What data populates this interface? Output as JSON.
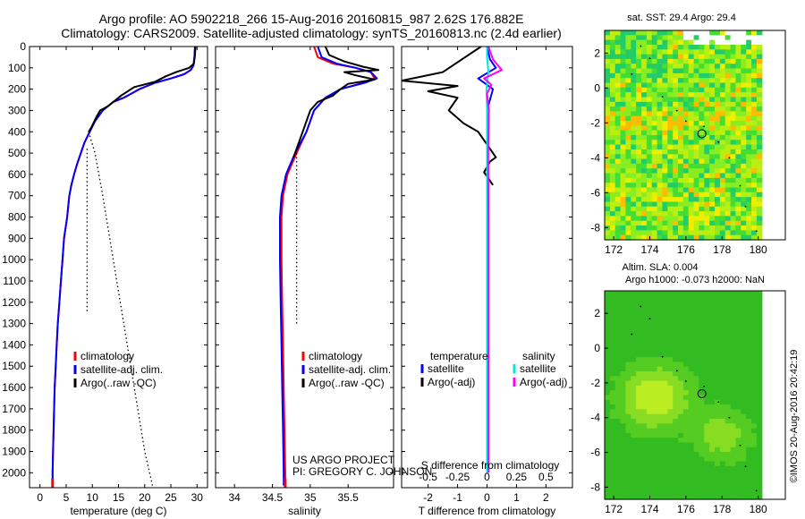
{
  "header": {
    "title_line1": "Argo profile: AO 5902218_266 15-Aug-2016 20160815_987 2.62S 176.882E",
    "title_line2": "Climatology: CARS2009. Satellite-adjusted climatology: synTS_20160813.nc (2.4d earlier)"
  },
  "credit": "©IMOS 20-Aug-2016 20:42:19",
  "project": {
    "line1": "US ARGO PROJECT",
    "line2": "PI: GREGORY C. JOHNSON"
  },
  "colors": {
    "climatology": "#ff0000",
    "satellite": "#0000ff",
    "argo": "#000000",
    "sat_salinity": "#00e5e5",
    "argo_salinity": "#ff00ff"
  },
  "chart_data": [
    {
      "id": "temperature",
      "type": "line",
      "xlabel": "temperature (deg C)",
      "ylabel": "",
      "xlim": [
        -2,
        32
      ],
      "ylim": [
        2070,
        0
      ],
      "xticks": [
        0,
        5,
        10,
        15,
        20,
        25,
        30
      ],
      "yticks": [
        0,
        100,
        200,
        300,
        400,
        500,
        600,
        700,
        800,
        900,
        1000,
        1100,
        1200,
        1300,
        1400,
        1500,
        1600,
        1700,
        1800,
        1900,
        2000
      ],
      "legend": [
        "climatology",
        "satellite-adj. clim.",
        "Argo(..raw -QC)"
      ],
      "series": [
        {
          "name": "climatology",
          "color": "#ff0000",
          "points": [
            [
              29.6,
              0
            ],
            [
              29.5,
              50
            ],
            [
              29.3,
              90
            ],
            [
              28.8,
              110
            ],
            [
              27.5,
              130
            ],
            [
              25,
              150
            ],
            [
              22,
              170
            ],
            [
              19,
              200
            ],
            [
              16,
              240
            ],
            [
              14,
              260
            ],
            [
              12,
              300
            ],
            [
              10.5,
              350
            ],
            [
              9.5,
              400
            ],
            [
              8.5,
              450
            ],
            [
              7.8,
              500
            ],
            [
              7.1,
              550
            ],
            [
              6.5,
              600
            ],
            [
              6,
              650
            ],
            [
              5.6,
              700
            ],
            [
              5.2,
              800
            ],
            [
              4.6,
              900
            ],
            [
              4.3,
              1000
            ],
            [
              4,
              1100
            ],
            [
              3.7,
              1200
            ],
            [
              3.4,
              1300
            ],
            [
              3.2,
              1400
            ],
            [
              3,
              1500
            ],
            [
              2.8,
              1600
            ],
            [
              2.7,
              1700
            ],
            [
              2.6,
              1800
            ],
            [
              2.5,
              1900
            ],
            [
              2.4,
              2000
            ],
            [
              2.4,
              2060
            ]
          ]
        },
        {
          "name": "satellite-adj. clim.",
          "color": "#0000ff",
          "points": [
            [
              29.6,
              0
            ],
            [
              29.5,
              50
            ],
            [
              29.3,
              90
            ],
            [
              28.8,
              110
            ],
            [
              27.5,
              130
            ],
            [
              25,
              150
            ],
            [
              22,
              170
            ],
            [
              19,
              200
            ],
            [
              16,
              240
            ],
            [
              14,
              260
            ],
            [
              12,
              300
            ],
            [
              10.5,
              350
            ],
            [
              9.5,
              400
            ],
            [
              8.5,
              450
            ],
            [
              7.8,
              500
            ],
            [
              7.1,
              550
            ],
            [
              6.5,
              600
            ],
            [
              6,
              650
            ],
            [
              5.6,
              700
            ],
            [
              5.2,
              800
            ],
            [
              4.6,
              900
            ],
            [
              4.3,
              1000
            ],
            [
              4,
              1100
            ],
            [
              3.7,
              1200
            ],
            [
              3.4,
              1300
            ],
            [
              3.2,
              1400
            ],
            [
              3,
              1500
            ],
            [
              2.8,
              1600
            ],
            [
              2.7,
              1700
            ],
            [
              2.6,
              1800
            ],
            [
              2.5,
              1900
            ],
            [
              2.4,
              2000
            ],
            [
              2.4,
              2060
            ]
          ]
        },
        {
          "name": "Argo(..raw -QC)",
          "color": "#000000",
          "points": [
            [
              29.7,
              0
            ],
            [
              29.6,
              40
            ],
            [
              29.4,
              80
            ],
            [
              28.5,
              100
            ],
            [
              26,
              120
            ],
            [
              24,
              140
            ],
            [
              22,
              165
            ],
            [
              18,
              190
            ],
            [
              15.5,
              230
            ],
            [
              13,
              280
            ],
            [
              11.5,
              300
            ],
            [
              10.8,
              330
            ],
            [
              9.8,
              380
            ],
            [
              9.3,
              400
            ]
          ]
        },
        {
          "name": "Argo raw dotted",
          "color": "#000000",
          "dotted": true,
          "points": [
            [
              9.3,
              400
            ],
            [
              10.5,
              500
            ],
            [
              12,
              700
            ],
            [
              14,
              1000
            ],
            [
              16,
              1300
            ],
            [
              18,
              1600
            ],
            [
              20,
              1900
            ],
            [
              21.5,
              2060
            ]
          ]
        },
        {
          "name": "Argo raw dotted 2",
          "color": "#000000",
          "dotted": true,
          "points": [
            [
              9,
              480
            ],
            [
              9,
              600
            ],
            [
              9,
              800
            ],
            [
              9,
              1000
            ],
            [
              9,
              1250
            ]
          ]
        }
      ]
    },
    {
      "id": "salinity",
      "type": "line",
      "xlabel": "salinity",
      "ylabel": "",
      "xlim": [
        33.75,
        36.1
      ],
      "ylim": [
        2070,
        0
      ],
      "xticks": [
        34,
        34.5,
        35,
        35.5
      ],
      "legend": [
        "climatology",
        "satellite-adj. clim.",
        "Argo(..raw -QC)"
      ],
      "series": [
        {
          "name": "climatology",
          "color": "#ff0000",
          "points": [
            [
              35.05,
              0
            ],
            [
              35.1,
              50
            ],
            [
              35.3,
              80
            ],
            [
              35.6,
              100
            ],
            [
              35.8,
              120
            ],
            [
              35.85,
              150
            ],
            [
              35.7,
              170
            ],
            [
              35.4,
              200
            ],
            [
              35.2,
              240
            ],
            [
              35.05,
              300
            ],
            [
              34.95,
              400
            ],
            [
              34.82,
              500
            ],
            [
              34.7,
              600
            ],
            [
              34.64,
              700
            ],
            [
              34.62,
              800
            ],
            [
              34.62,
              1000
            ],
            [
              34.63,
              1200
            ],
            [
              34.64,
              1400
            ],
            [
              34.65,
              1600
            ],
            [
              34.66,
              1800
            ],
            [
              34.67,
              2000
            ],
            [
              34.67,
              2060
            ]
          ]
        },
        {
          "name": "satellite-adj. clim.",
          "color": "#0000ff",
          "points": [
            [
              35.1,
              0
            ],
            [
              35.15,
              50
            ],
            [
              35.35,
              80
            ],
            [
              35.6,
              100
            ],
            [
              35.8,
              120
            ],
            [
              35.88,
              150
            ],
            [
              35.72,
              170
            ],
            [
              35.4,
              200
            ],
            [
              35.2,
              240
            ],
            [
              35.05,
              300
            ],
            [
              34.95,
              400
            ],
            [
              34.8,
              500
            ],
            [
              34.68,
              600
            ],
            [
              34.62,
              700
            ],
            [
              34.6,
              800
            ],
            [
              34.6,
              1000
            ],
            [
              34.61,
              1200
            ],
            [
              34.62,
              1400
            ],
            [
              34.63,
              1600
            ],
            [
              34.64,
              1800
            ],
            [
              34.65,
              2000
            ],
            [
              34.65,
              2060
            ]
          ]
        },
        {
          "name": "Argo(..raw -QC)",
          "color": "#000000",
          "points": [
            [
              35.2,
              0
            ],
            [
              35.25,
              40
            ],
            [
              35.45,
              70
            ],
            [
              35.7,
              95
            ],
            [
              35.9,
              110
            ],
            [
              35.45,
              120
            ],
            [
              35.6,
              135
            ],
            [
              35.85,
              155
            ],
            [
              35.5,
              175
            ],
            [
              35.4,
              200
            ],
            [
              35.3,
              230
            ],
            [
              35.1,
              260
            ],
            [
              35.0,
              300
            ],
            [
              34.9,
              400
            ],
            [
              34.82,
              480
            ],
            [
              34.78,
              520
            ]
          ]
        },
        {
          "name": "Argo raw dotted",
          "color": "#000000",
          "dotted": true,
          "points": [
            [
              34.82,
              500
            ],
            [
              34.82,
              700
            ],
            [
              34.82,
              1000
            ],
            [
              34.82,
              1300
            ]
          ]
        }
      ]
    },
    {
      "id": "difference",
      "type": "line",
      "xlabel": "T difference from climatology",
      "xlabel_top": "S difference from climatology",
      "xlim": [
        -2.9,
        2.9
      ],
      "ylim": [
        2070,
        0
      ],
      "xticks_T": [
        -2,
        -1,
        0,
        1,
        2
      ],
      "xticks_S": [
        -0.5,
        -0.25,
        0,
        0.25,
        0.5
      ],
      "legend_headers": [
        "temperature",
        "salinity"
      ],
      "legend": [
        "satellite",
        "Argo(-adj)",
        "satellite",
        "Argo(-adj)"
      ],
      "series": [
        {
          "name": "T satellite",
          "color": "#0000ff",
          "points": [
            [
              0,
              0
            ],
            [
              0.1,
              60
            ],
            [
              0.3,
              100
            ],
            [
              -0.3,
              150
            ],
            [
              0.2,
              200
            ],
            [
              0,
              300
            ],
            [
              0,
              500
            ],
            [
              0,
              800
            ],
            [
              0,
              1200
            ],
            [
              0,
              2000
            ]
          ]
        },
        {
          "name": "T Argo(-adj)",
          "color": "#000000",
          "points": [
            [
              -0.2,
              0
            ],
            [
              -1.5,
              120
            ],
            [
              -2.9,
              160
            ],
            [
              -1,
              185
            ],
            [
              -2,
              210
            ],
            [
              -1,
              240
            ],
            [
              -1.3,
              300
            ],
            [
              -0.8,
              360
            ],
            [
              -0.3,
              400
            ],
            [
              0.3,
              520
            ],
            [
              0.1,
              540
            ],
            [
              -0.1,
              590
            ],
            [
              0.2,
              650
            ]
          ]
        },
        {
          "name": "S satellite",
          "color": "#00e5e5",
          "points": [
            [
              0,
              0
            ],
            [
              0,
              50
            ],
            [
              0.05,
              120
            ],
            [
              -0.02,
              200
            ],
            [
              0,
              300
            ],
            [
              0,
              500
            ],
            [
              0,
              1000
            ],
            [
              0,
              1500
            ],
            [
              0,
              2000
            ]
          ]
        },
        {
          "name": "S Argo(-adj)",
          "color": "#ff00ff",
          "points": [
            [
              0.05,
              0
            ],
            [
              0.2,
              60
            ],
            [
              0.5,
              110
            ],
            [
              -0.1,
              150
            ],
            [
              0.15,
              180
            ],
            [
              0,
              220
            ],
            [
              0.06,
              300
            ],
            [
              0.04,
              500
            ],
            [
              0.05,
              800
            ],
            [
              0.05,
              1200
            ],
            [
              0.05,
              1600
            ],
            [
              0.05,
              2000
            ]
          ]
        }
      ]
    },
    {
      "id": "sst-map",
      "type": "heatmap",
      "title": "sat. SST: 29.4 Argo: 29.4",
      "xlim": [
        171.5,
        181.5
      ],
      "ylim": [
        -8.7,
        3.3
      ],
      "xticks": [
        172,
        174,
        176,
        178,
        180
      ],
      "yticks": [
        2,
        0,
        -2,
        -4,
        -6,
        -8
      ],
      "marker": [
        176.882,
        -2.62
      ]
    },
    {
      "id": "sla-map",
      "type": "heatmap",
      "title_line1": "Altim. SLA: 0.004",
      "title_line2": "Argo h1000: -0.073 h2000: NaN",
      "xlim": [
        171.5,
        181.5
      ],
      "ylim": [
        -8.7,
        3.3
      ],
      "xticks": [
        172,
        174,
        176,
        178,
        180
      ],
      "yticks": [
        2,
        0,
        -2,
        -4,
        -6,
        -8
      ],
      "marker": [
        176.882,
        -2.62
      ]
    }
  ]
}
